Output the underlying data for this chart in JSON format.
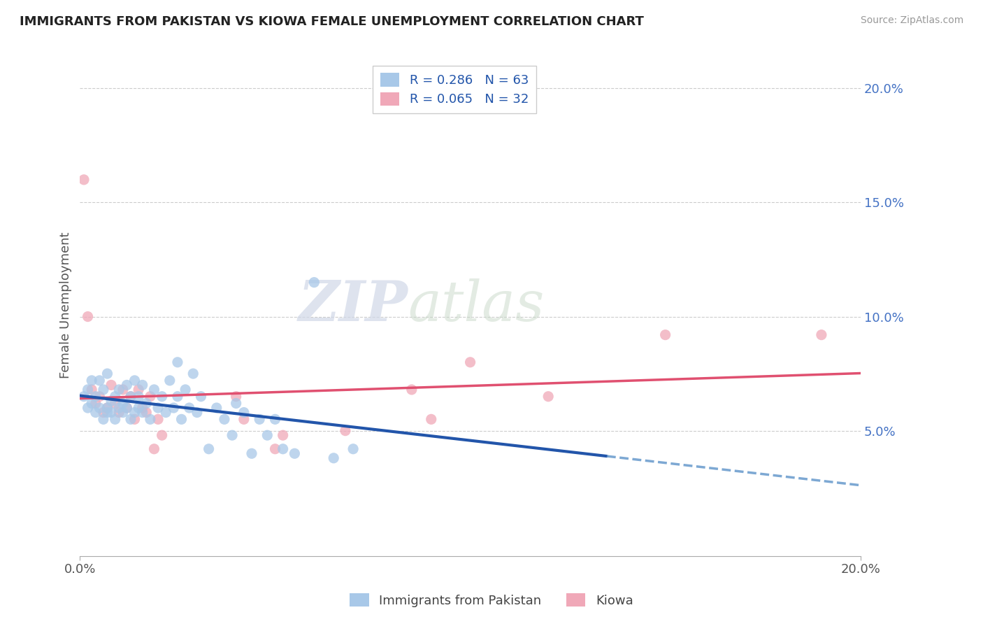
{
  "title": "IMMIGRANTS FROM PAKISTAN VS KIOWA FEMALE UNEMPLOYMENT CORRELATION CHART",
  "source": "Source: ZipAtlas.com",
  "ylabel": "Female Unemployment",
  "right_yticks": [
    "5.0%",
    "10.0%",
    "15.0%",
    "20.0%"
  ],
  "right_ytick_vals": [
    0.05,
    0.1,
    0.15,
    0.2
  ],
  "grid_ytick_vals": [
    0.05,
    0.1,
    0.15,
    0.2
  ],
  "xmin": 0.0,
  "xmax": 0.2,
  "ymin": -0.005,
  "ymax": 0.215,
  "blue_color": "#A8C8E8",
  "pink_color": "#F0A8B8",
  "blue_line_color": "#2255AA",
  "pink_line_color": "#E05070",
  "blue_dash_color": "#6699CC",
  "watermark_zip": "ZIP",
  "watermark_atlas": "atlas",
  "bottom_legend": [
    "Immigrants from Pakistan",
    "Kiowa"
  ],
  "legend_R1": "R = 0.286",
  "legend_N1": "N = 63",
  "legend_R2": "R = 0.065",
  "legend_N2": "N = 32",
  "pakistan_scatter": [
    [
      0.001,
      0.065
    ],
    [
      0.002,
      0.068
    ],
    [
      0.002,
      0.06
    ],
    [
      0.003,
      0.062
    ],
    [
      0.003,
      0.072
    ],
    [
      0.004,
      0.058
    ],
    [
      0.004,
      0.065
    ],
    [
      0.005,
      0.06
    ],
    [
      0.005,
      0.072
    ],
    [
      0.006,
      0.055
    ],
    [
      0.006,
      0.068
    ],
    [
      0.007,
      0.06
    ],
    [
      0.007,
      0.075
    ],
    [
      0.007,
      0.058
    ],
    [
      0.008,
      0.063
    ],
    [
      0.008,
      0.058
    ],
    [
      0.009,
      0.065
    ],
    [
      0.009,
      0.055
    ],
    [
      0.01,
      0.06
    ],
    [
      0.01,
      0.068
    ],
    [
      0.011,
      0.058
    ],
    [
      0.011,
      0.062
    ],
    [
      0.012,
      0.07
    ],
    [
      0.012,
      0.06
    ],
    [
      0.013,
      0.065
    ],
    [
      0.013,
      0.055
    ],
    [
      0.014,
      0.072
    ],
    [
      0.014,
      0.058
    ],
    [
      0.015,
      0.06
    ],
    [
      0.015,
      0.065
    ],
    [
      0.016,
      0.058
    ],
    [
      0.016,
      0.07
    ],
    [
      0.017,
      0.062
    ],
    [
      0.018,
      0.055
    ],
    [
      0.019,
      0.068
    ],
    [
      0.02,
      0.06
    ],
    [
      0.021,
      0.065
    ],
    [
      0.022,
      0.058
    ],
    [
      0.023,
      0.072
    ],
    [
      0.024,
      0.06
    ],
    [
      0.025,
      0.065
    ],
    [
      0.025,
      0.08
    ],
    [
      0.026,
      0.055
    ],
    [
      0.027,
      0.068
    ],
    [
      0.028,
      0.06
    ],
    [
      0.029,
      0.075
    ],
    [
      0.03,
      0.058
    ],
    [
      0.031,
      0.065
    ],
    [
      0.033,
      0.042
    ],
    [
      0.035,
      0.06
    ],
    [
      0.037,
      0.055
    ],
    [
      0.039,
      0.048
    ],
    [
      0.04,
      0.062
    ],
    [
      0.042,
      0.058
    ],
    [
      0.044,
      0.04
    ],
    [
      0.046,
      0.055
    ],
    [
      0.048,
      0.048
    ],
    [
      0.05,
      0.055
    ],
    [
      0.052,
      0.042
    ],
    [
      0.055,
      0.04
    ],
    [
      0.06,
      0.115
    ],
    [
      0.065,
      0.038
    ],
    [
      0.07,
      0.042
    ]
  ],
  "kiowa_scatter": [
    [
      0.001,
      0.16
    ],
    [
      0.002,
      0.1
    ],
    [
      0.003,
      0.068
    ],
    [
      0.004,
      0.062
    ],
    [
      0.005,
      0.065
    ],
    [
      0.006,
      0.058
    ],
    [
      0.007,
      0.06
    ],
    [
      0.008,
      0.07
    ],
    [
      0.009,
      0.062
    ],
    [
      0.01,
      0.058
    ],
    [
      0.011,
      0.068
    ],
    [
      0.012,
      0.06
    ],
    [
      0.013,
      0.065
    ],
    [
      0.014,
      0.055
    ],
    [
      0.015,
      0.068
    ],
    [
      0.016,
      0.06
    ],
    [
      0.017,
      0.058
    ],
    [
      0.018,
      0.065
    ],
    [
      0.019,
      0.042
    ],
    [
      0.02,
      0.055
    ],
    [
      0.021,
      0.048
    ],
    [
      0.04,
      0.065
    ],
    [
      0.042,
      0.055
    ],
    [
      0.05,
      0.042
    ],
    [
      0.052,
      0.048
    ],
    [
      0.068,
      0.05
    ],
    [
      0.085,
      0.068
    ],
    [
      0.09,
      0.055
    ],
    [
      0.1,
      0.08
    ],
    [
      0.12,
      0.065
    ],
    [
      0.15,
      0.092
    ],
    [
      0.19,
      0.092
    ]
  ]
}
